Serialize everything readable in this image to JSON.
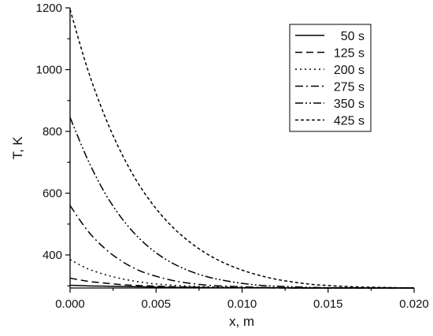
{
  "chart_data": {
    "type": "line",
    "title": "",
    "xlabel": "x, m",
    "ylabel": "T, K",
    "xlim": [
      0,
      0.02
    ],
    "ylim": [
      293,
      1200
    ],
    "x_ticks": [
      0,
      0.005,
      0.01,
      0.015,
      0.02
    ],
    "x_tick_labels": [
      "0.000",
      "0.005",
      "0.010",
      "0.015",
      "0.020"
    ],
    "y_ticks": [
      400,
      600,
      800,
      1000,
      1200
    ],
    "y_tick_labels": [
      "400",
      "600",
      "800",
      "1000",
      "1200"
    ],
    "grid": false,
    "legend_position": "top-right",
    "x": [
      0,
      0.001,
      0.002,
      0.003,
      0.004,
      0.005,
      0.006,
      0.007,
      0.008,
      0.009,
      0.01,
      0.011,
      0.012,
      0.013,
      0.014,
      0.015,
      0.016,
      0.017,
      0.018,
      0.019,
      0.02
    ],
    "series": [
      {
        "name": "50 s",
        "dash": "",
        "values": [
          302,
          300,
          299,
          298,
          297,
          296,
          295,
          295,
          294,
          294,
          294,
          294,
          294,
          293,
          293,
          293,
          293,
          293,
          293,
          293,
          293
        ]
      },
      {
        "name": "125 s",
        "dash": "9,5",
        "values": [
          325,
          315,
          309,
          304,
          301,
          299,
          297,
          296,
          295,
          294,
          294,
          294,
          293,
          293,
          293,
          293,
          293,
          293,
          293,
          293,
          293
        ]
      },
      {
        "name": "200 s",
        "dash": "2,4",
        "values": [
          385,
          356,
          337,
          323,
          313,
          306,
          302,
          299,
          297,
          296,
          295,
          294,
          294,
          293,
          293,
          293,
          293,
          293,
          293,
          293,
          293
        ]
      },
      {
        "name": "275 s",
        "dash": "10,4,2,4",
        "values": [
          560,
          480,
          422,
          380,
          350,
          331,
          317,
          308,
          302,
          299,
          297,
          295,
          294,
          294,
          293,
          293,
          293,
          293,
          293,
          293,
          293
        ]
      },
      {
        "name": "350 s",
        "dash": "10,3,2,3,2,3",
        "values": [
          845,
          712,
          603,
          519,
          455,
          407,
          372,
          347,
          329,
          317,
          308,
          302,
          299,
          297,
          295,
          294,
          294,
          293,
          293,
          293,
          293
        ]
      },
      {
        "name": "425 s",
        "dash": "4,3",
        "values": [
          1195,
          1005,
          852,
          728,
          628,
          550,
          488,
          440,
          402,
          373,
          351,
          334,
          321,
          312,
          305,
          301,
          298,
          296,
          295,
          294,
          293
        ]
      }
    ]
  }
}
